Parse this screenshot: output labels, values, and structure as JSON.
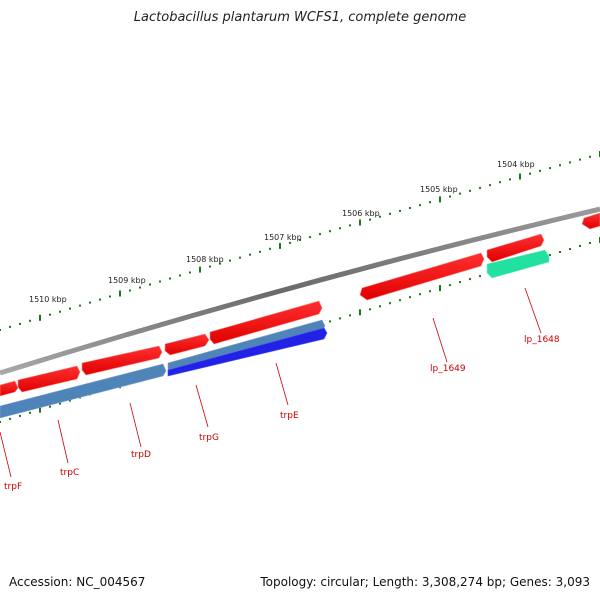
{
  "title": "Lactobacillus plantarum WCFS1, complete genome",
  "footer": {
    "accession": "Accession: NC_004567",
    "topology": "Topology: circular; Length: 3,308,274 bp; Genes: 3,093"
  },
  "ticks": [
    "1504 kbp",
    "1505 kbp",
    "1506 kbp",
    "1507 kbp",
    "1508 kbp",
    "1509 kbp",
    "1510 kbp"
  ],
  "genes": [
    "lp_1648",
    "lp_1649",
    "trpE",
    "trpG",
    "trpD",
    "trpC",
    "trpF"
  ],
  "colors": {
    "forward": "#ee1111",
    "reverse_blue": "#2a2ae6",
    "reverse_steel": "#4a7fb0",
    "teal": "#22e0a0",
    "backbone": "#7a7a7a",
    "tick": "#1a7a1a",
    "label": "#cc0000"
  }
}
